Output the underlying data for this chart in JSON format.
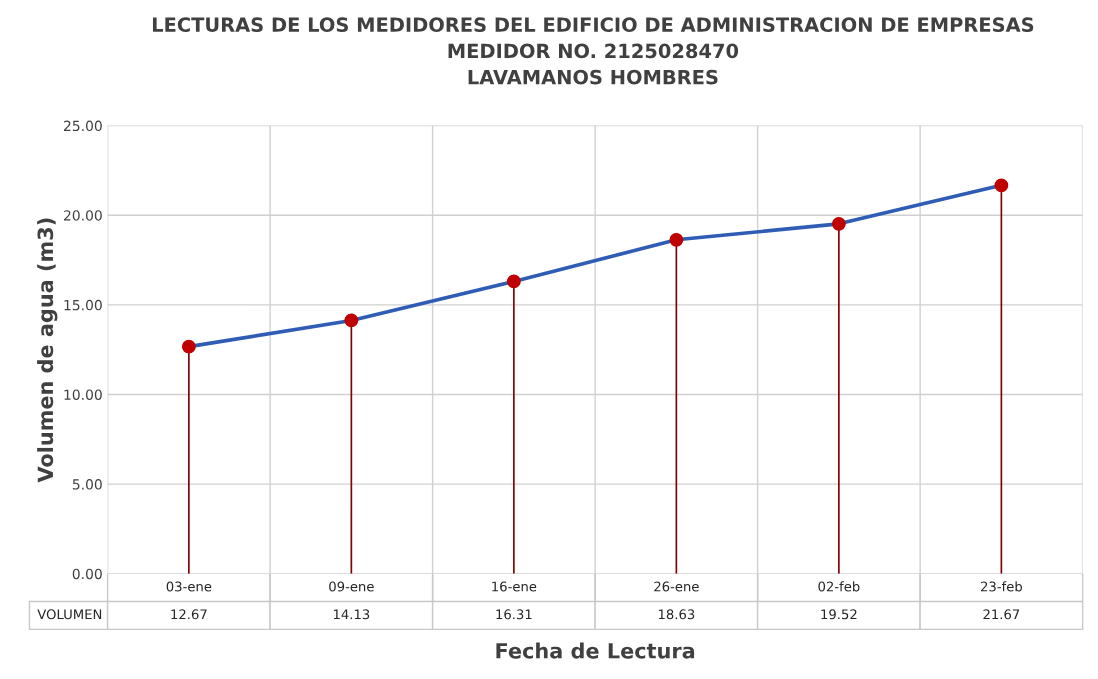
{
  "chart_data": {
    "type": "line",
    "title": "LECTURAS DE LOS MEDIDORES DEL EDIFICIO DE ADMINISTRACION DE EMPRESAS\nMEDIDOR NO. 2125028470\nLAVAMANOS HOMBRES",
    "xlabel": "Fecha de Lectura",
    "ylabel": "Volumen de agua (m3)",
    "categories": [
      "03-ene",
      "09-ene",
      "16-ene",
      "26-ene",
      "02-feb",
      "23-feb"
    ],
    "series": [
      {
        "name": "VOLUMEN",
        "marker": "none",
        "color": "#2f5db5",
        "values": [
          12.67,
          14.13,
          16.31,
          18.63,
          19.52,
          21.67
        ],
        "value_labels": [
          "12.67",
          "14.13",
          "16.31",
          "18.63",
          "19.52",
          "21.67"
        ]
      },
      {
        "type": "lollipop",
        "marker": "circle",
        "color": "#7f0000",
        "colors": [
          "#c00000",
          "#c00000",
          "#c00000",
          "#c00000",
          "#c00000",
          "#c00000"
        ],
        "values": [
          12.67,
          14.13,
          16.31,
          18.63,
          19.52,
          21.67
        ]
      }
    ],
    "ylim": [
      0,
      25
    ],
    "yticks": [
      {
        "value": 0,
        "label": "0.00"
      },
      {
        "value": 5,
        "label": "5.00"
      },
      {
        "value": 10,
        "label": "10.00"
      },
      {
        "value": 15,
        "label": "15.00"
      },
      {
        "value": 20,
        "label": "20.00"
      },
      {
        "value": 25,
        "label": "25.00"
      }
    ],
    "grid": true,
    "line_style": "solid",
    "legend": false
  }
}
